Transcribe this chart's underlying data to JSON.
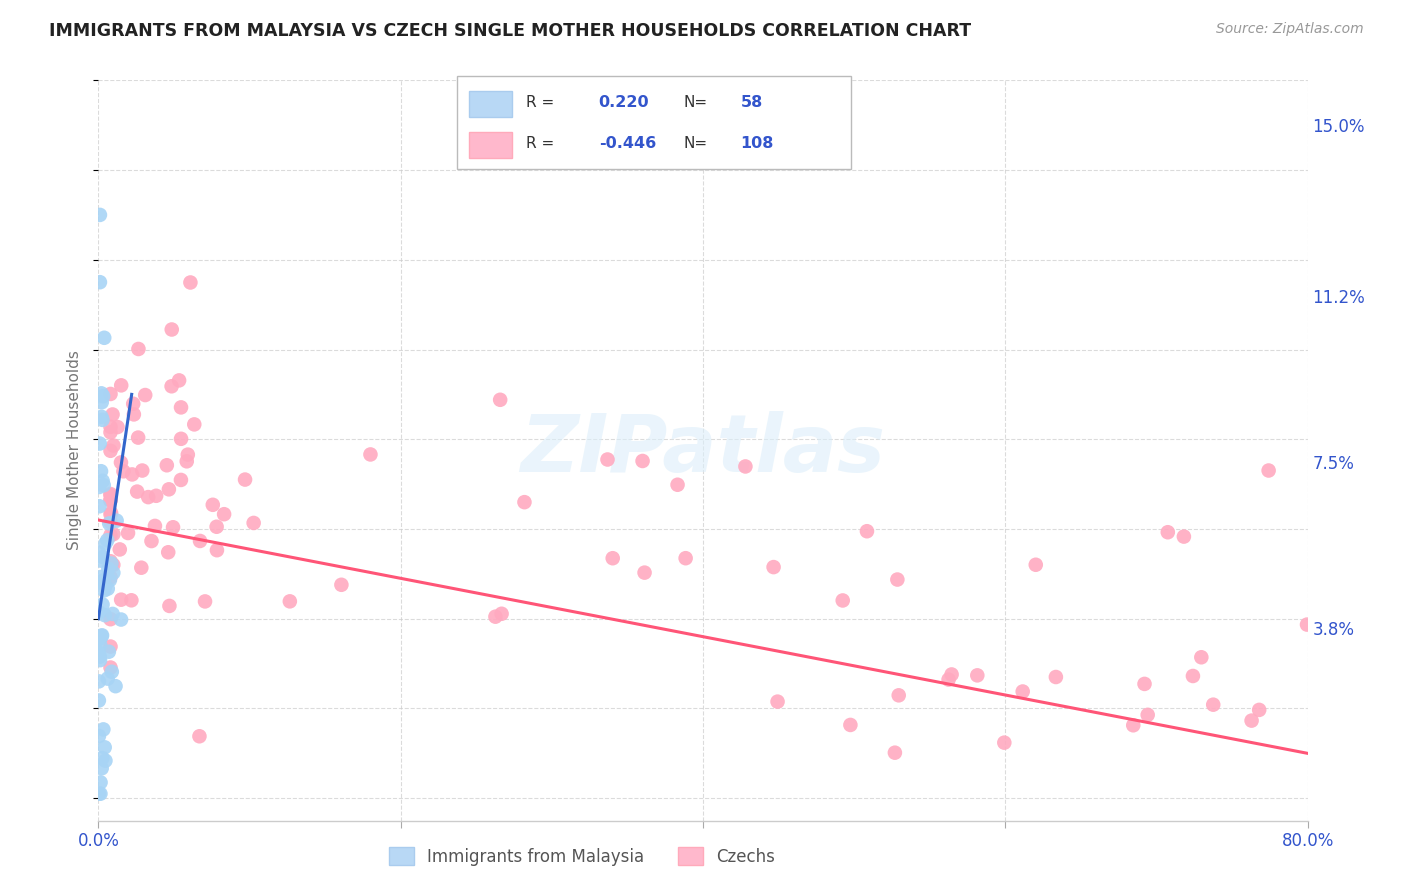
{
  "title": "IMMIGRANTS FROM MALAYSIA VS CZECH SINGLE MOTHER HOUSEHOLDS CORRELATION CHART",
  "source": "Source: ZipAtlas.com",
  "ylabel": "Single Mother Households",
  "ytick_labels": [
    "15.0%",
    "11.2%",
    "7.5%",
    "3.8%"
  ],
  "ytick_values": [
    0.15,
    0.112,
    0.075,
    0.038
  ],
  "xmin": 0.0,
  "xmax": 0.8,
  "ymin": -0.005,
  "ymax": 0.16,
  "watermark": "ZIPatlas",
  "malaysia_color": "#a8d4f5",
  "malaysia_edge": "#7ab8e8",
  "czech_color": "#ffaac0",
  "czech_edge": "#ff88a8",
  "trendline_malaysia_color": "#3366cc",
  "trendline_czech_color": "#ff5577",
  "legend1_color": "#b8d8f5",
  "legend2_color": "#ffb8cc",
  "r1": "0.220",
  "n1": "58",
  "r2": "-0.446",
  "n2": "108",
  "text_color": "#3355cc",
  "label_color": "#666666",
  "bottom_label1": "Immigrants from Malaysia",
  "bottom_label2": "Czechs"
}
